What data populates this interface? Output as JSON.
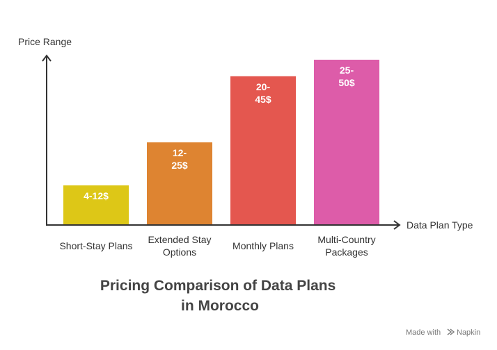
{
  "chart_data": {
    "type": "bar",
    "title": "Pricing Comparison of Data Plans in Morocco",
    "title_lines": [
      "Pricing Comparison of Data Plans",
      "in Morocco"
    ],
    "xlabel": "Data Plan Type",
    "ylabel": "Price Range",
    "categories": [
      "Short-Stay Plans",
      "Extended Stay Options",
      "Monthly Plans",
      "Multi-Country Packages"
    ],
    "category_lines": [
      [
        "Short-Stay Plans"
      ],
      [
        "Extended Stay",
        "Options"
      ],
      [
        "Monthly Plans"
      ],
      [
        "Multi-Country",
        "Packages"
      ]
    ],
    "ranges": [
      [
        4,
        12
      ],
      [
        12,
        25
      ],
      [
        20,
        45
      ],
      [
        25,
        50
      ]
    ],
    "values": [
      12,
      25,
      45,
      50
    ],
    "data_labels": [
      [
        "4-12$"
      ],
      [
        "12-",
        "25$"
      ],
      [
        "20-",
        "45$"
      ],
      [
        "25-",
        "50$"
      ]
    ],
    "colors": [
      "#DDC717",
      "#DE8431",
      "#E4574F",
      "#DD5CA9"
    ],
    "ylim": [
      0,
      50
    ],
    "grid": false,
    "legend": "none"
  },
  "footer": {
    "credit": "Made with",
    "brand": "Napkin"
  }
}
